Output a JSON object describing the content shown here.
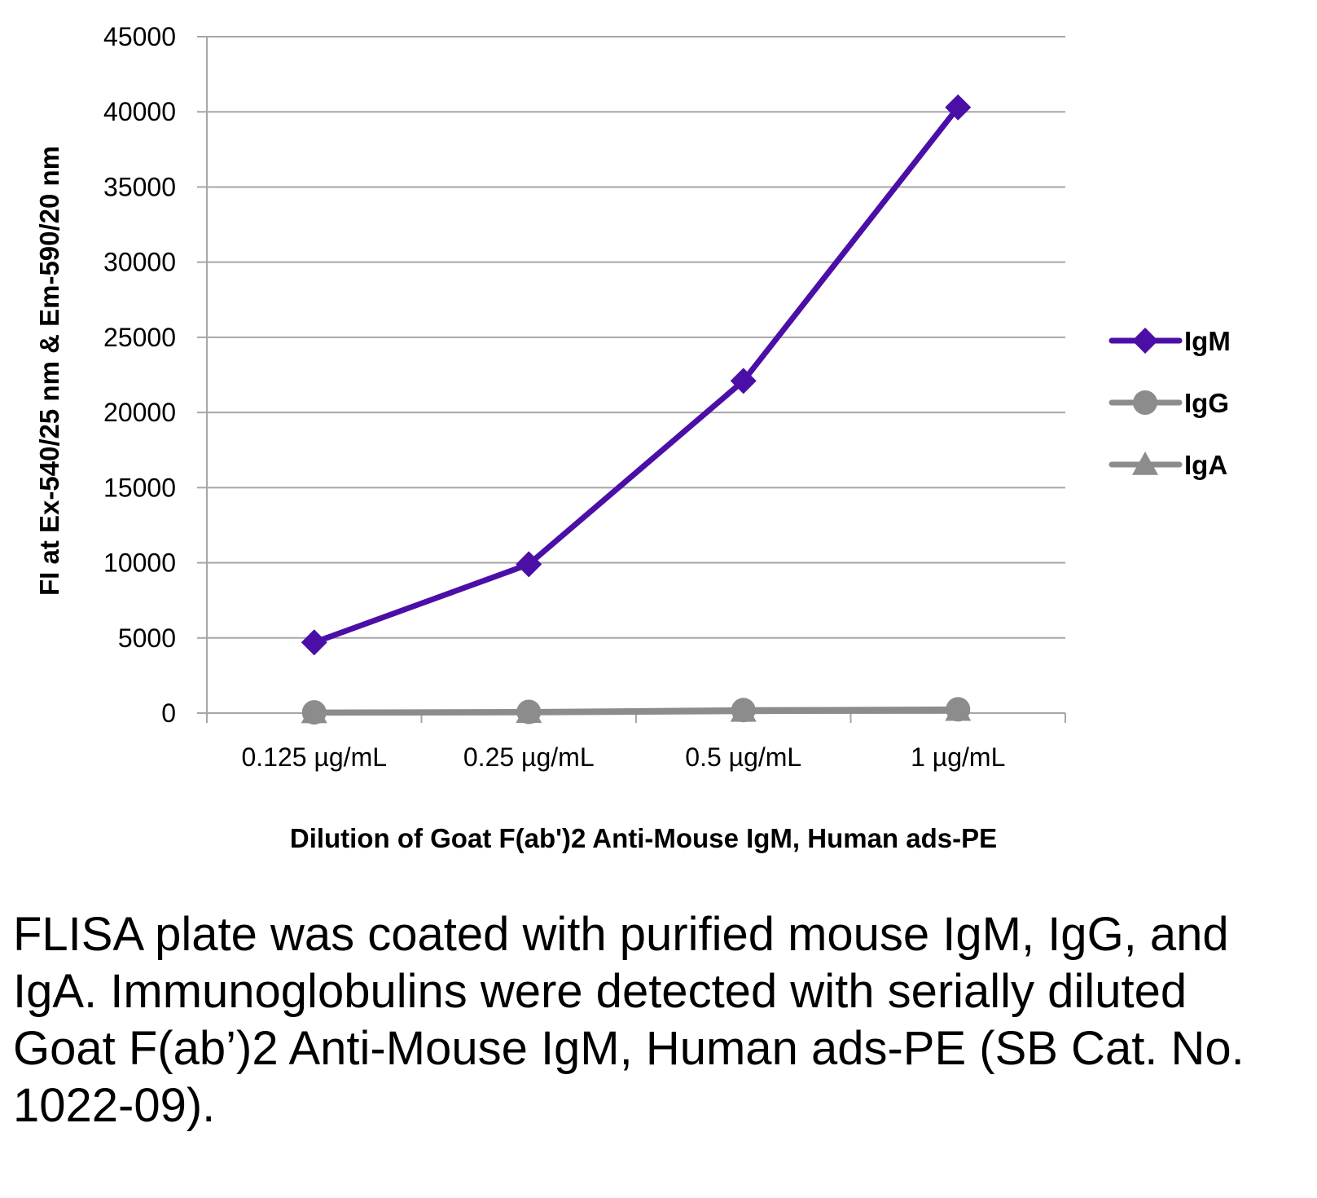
{
  "chart_data": {
    "type": "line",
    "categories": [
      "0.125 µg/mL",
      "0.25 µg/mL",
      "0.5 µg/mL",
      "1 µg/mL"
    ],
    "series": [
      {
        "name": "IgM",
        "values": [
          4700,
          9900,
          22100,
          40300
        ],
        "color": "#4b0fa8",
        "marker": "diamond"
      },
      {
        "name": "IgG",
        "values": [
          50,
          80,
          200,
          250
        ],
        "color": "#8c8c8c",
        "marker": "circle"
      },
      {
        "name": "IgA",
        "values": [
          20,
          40,
          120,
          180
        ],
        "color": "#8c8c8c",
        "marker": "triangle"
      }
    ],
    "ylim": [
      0,
      45000
    ],
    "yticks": [
      0,
      5000,
      10000,
      15000,
      20000,
      25000,
      30000,
      35000,
      40000,
      45000
    ],
    "xlabel": "Dilution of Goat F(ab')2 Anti-Mouse IgM, Human ads-PE",
    "ylabel": "FI at Ex-540/25 nm & Em-590/20 nm",
    "grid": true,
    "legend": "right"
  },
  "caption": "FLISA plate was coated with purified mouse IgM, IgG, and IgA.  Immunoglobulins were detected with serially diluted Goat F(ab’)2 Anti-Mouse IgM, Human ads-PE (SB Cat. No. 1022-09)."
}
